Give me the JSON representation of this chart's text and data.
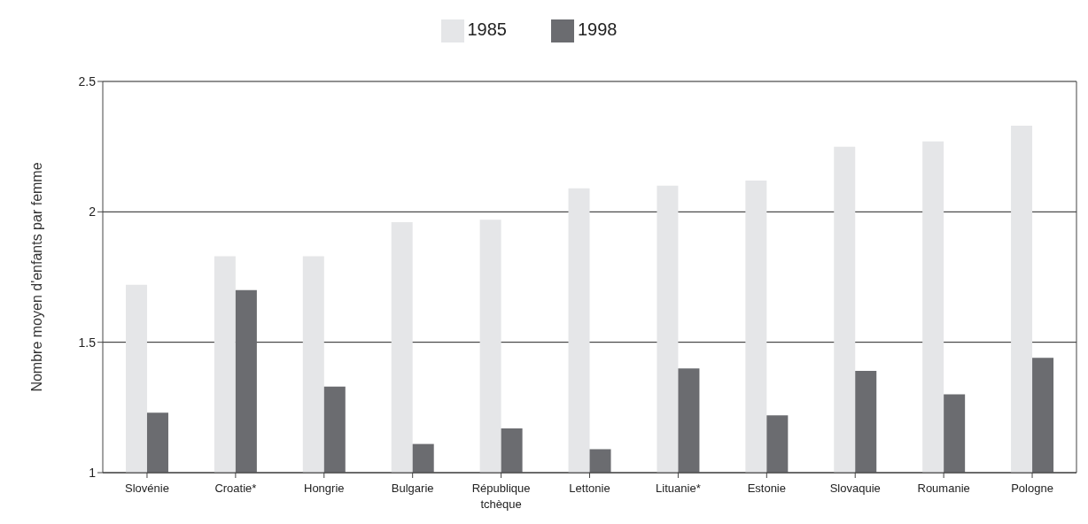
{
  "chart_data": {
    "type": "bar",
    "ylabel": "Nombre moyen d'enfants par femme",
    "categories": [
      "Slovénie",
      "Croatie*",
      "Hongrie",
      "Bulgarie",
      "République tchèque",
      "Lettonie",
      "Lituanie*",
      "Estonie",
      "Slovaquie",
      "Roumanie",
      "Pologne"
    ],
    "series": [
      {
        "name": "1985",
        "color": "#e5e6e8",
        "values": [
          1.72,
          1.83,
          1.83,
          1.96,
          1.97,
          2.09,
          2.1,
          2.12,
          2.25,
          2.27,
          2.33
        ]
      },
      {
        "name": "1998",
        "color": "#6b6c70",
        "values": [
          1.23,
          1.7,
          1.33,
          1.11,
          1.17,
          1.09,
          1.4,
          1.22,
          1.39,
          1.3,
          1.44
        ]
      }
    ],
    "ylim": [
      1,
      2.5
    ],
    "yticks": [
      1,
      1.5,
      2,
      2.5
    ],
    "grid": "y",
    "legend": "top"
  }
}
